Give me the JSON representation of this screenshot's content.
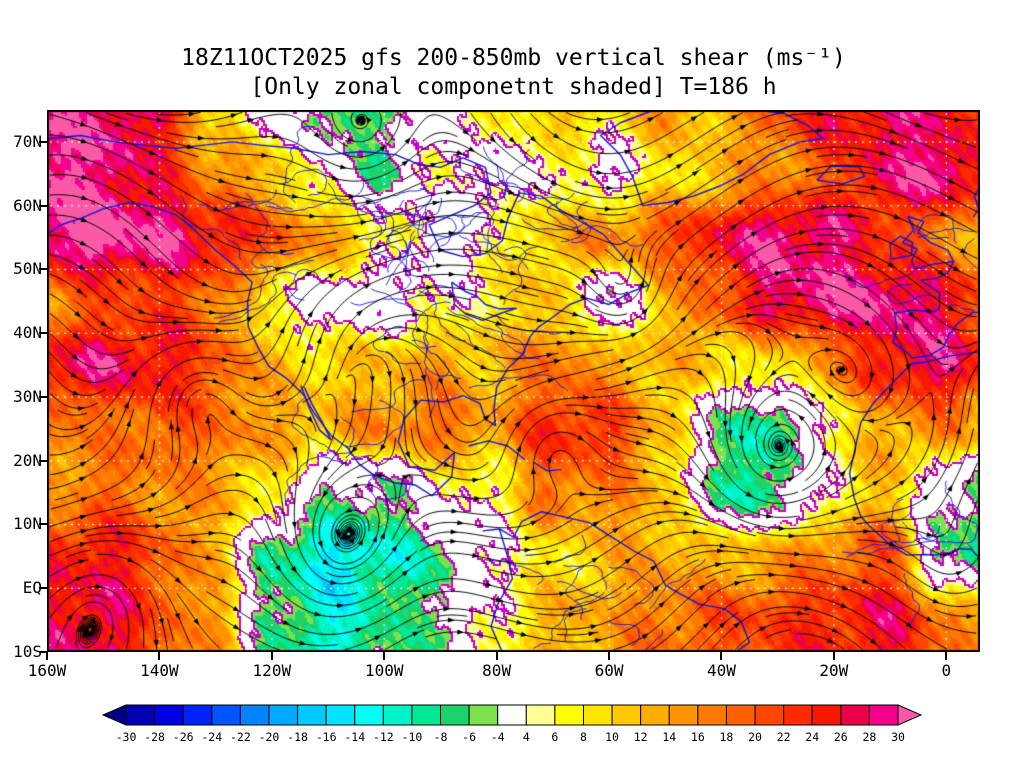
{
  "title": {
    "line1": "18Z11OCT2025 gfs 200-850mb vertical shear (ms⁻¹)",
    "line2": "[Only zonal componetnt shaded] T=186 h"
  },
  "axes": {
    "y_ticks": [
      {
        "label": "70N",
        "lat": 70
      },
      {
        "label": "60N",
        "lat": 60
      },
      {
        "label": "50N",
        "lat": 50
      },
      {
        "label": "40N",
        "lat": 40
      },
      {
        "label": "30N",
        "lat": 30
      },
      {
        "label": "20N",
        "lat": 20
      },
      {
        "label": "10N",
        "lat": 10
      },
      {
        "label": "EQ",
        "lat": 0
      },
      {
        "label": "10S",
        "lat": -10
      }
    ],
    "x_ticks": [
      {
        "label": "160W",
        "lon": -160
      },
      {
        "label": "140W",
        "lon": -140
      },
      {
        "label": "120W",
        "lon": -120
      },
      {
        "label": "100W",
        "lon": -100
      },
      {
        "label": "80W",
        "lon": -80
      },
      {
        "label": "60W",
        "lon": -60
      },
      {
        "label": "40W",
        "lon": -40
      },
      {
        "label": "20W",
        "lon": -20
      },
      {
        "label": "0",
        "lon": 0
      }
    ],
    "lon_range": [
      -160,
      6
    ],
    "lat_range": [
      -10,
      75
    ]
  },
  "colorbar": {
    "tick_labels": [
      "-30",
      "-28",
      "-26",
      "-24",
      "-22",
      "-20",
      "-18",
      "-16",
      "-14",
      "-12",
      "-10",
      "-8",
      "-6",
      "-4",
      "4",
      "6",
      "8",
      "10",
      "12",
      "14",
      "16",
      "18",
      "20",
      "22",
      "24",
      "26",
      "28",
      "30"
    ],
    "colors": [
      "#000084",
      "#0000b4",
      "#0000e4",
      "#0022ff",
      "#0055ff",
      "#0084ff",
      "#00aaff",
      "#00caff",
      "#00e4ff",
      "#00fff4",
      "#00f4c8",
      "#00e896",
      "#1ed26a",
      "#7ce24c",
      "#ffffff",
      "#ffff96",
      "#ffff00",
      "#ffe400",
      "#ffc800",
      "#ffae00",
      "#ff9400",
      "#ff7a00",
      "#ff6000",
      "#ff4600",
      "#ff2a00",
      "#f61800",
      "#ec0048",
      "#f4008c",
      "#fb59a8"
    ]
  },
  "map": {
    "coastline_color": "#1414dc",
    "river_color": "#1414dc",
    "contour_color": "#c800c8",
    "streamline_color": "#000000",
    "gridline_color": "#ffffff",
    "background": "#ffffff"
  },
  "chart_data": {
    "type": "heatmap",
    "title": "18Z11OCT2025 gfs 200-850mb vertical shear (ms⁻¹)",
    "subtitle": "[Only zonal componetnt shaded] T=186 h",
    "units": "ms⁻¹",
    "overlay": "shear-vector streamlines with arrowheads",
    "colorbar_levels": [
      -30,
      -28,
      -26,
      -24,
      -22,
      -20,
      -18,
      -16,
      -14,
      -12,
      -10,
      -8,
      -6,
      -4,
      4,
      6,
      8,
      10,
      12,
      14,
      16,
      18,
      20,
      22,
      24,
      26,
      28,
      30
    ],
    "x_lons": [
      -160,
      -150,
      -140,
      -130,
      -120,
      -110,
      -100,
      -90,
      -80,
      -70,
      -60,
      -50,
      -40,
      -30,
      -20,
      -10,
      0,
      6
    ],
    "y_lats": [
      75,
      65,
      55,
      45,
      35,
      25,
      15,
      5,
      -5
    ],
    "values": [
      [
        28,
        30,
        26,
        8,
        2,
        -8,
        -6,
        2,
        6,
        12,
        8,
        14,
        12,
        20,
        26,
        28,
        26,
        22
      ],
      [
        30,
        30,
        24,
        16,
        12,
        2,
        -6,
        6,
        0,
        6,
        2,
        8,
        12,
        16,
        20,
        28,
        30,
        26
      ],
      [
        30,
        32,
        30,
        26,
        20,
        14,
        8,
        0,
        6,
        12,
        16,
        20,
        26,
        30,
        28,
        22,
        16,
        14
      ],
      [
        16,
        20,
        22,
        18,
        6,
        0,
        0,
        4,
        8,
        12,
        -4,
        12,
        20,
        28,
        30,
        30,
        26,
        22
      ],
      [
        26,
        28,
        26,
        20,
        12,
        10,
        12,
        14,
        12,
        18,
        14,
        12,
        10,
        8,
        16,
        26,
        28,
        24
      ],
      [
        18,
        16,
        20,
        18,
        14,
        12,
        16,
        18,
        14,
        24,
        22,
        12,
        -6,
        -10,
        6,
        14,
        16,
        12
      ],
      [
        14,
        18,
        16,
        14,
        8,
        -4,
        -6,
        4,
        6,
        18,
        16,
        12,
        -8,
        -8,
        6,
        12,
        -4,
        -6
      ],
      [
        24,
        26,
        20,
        12,
        -8,
        -14,
        -12,
        -6,
        4,
        8,
        12,
        14,
        12,
        14,
        18,
        20,
        -6,
        -8
      ],
      [
        26,
        28,
        20,
        14,
        -6,
        -12,
        -8,
        -4,
        6,
        12,
        14,
        18,
        20,
        22,
        24,
        26,
        18,
        14
      ]
    ]
  }
}
